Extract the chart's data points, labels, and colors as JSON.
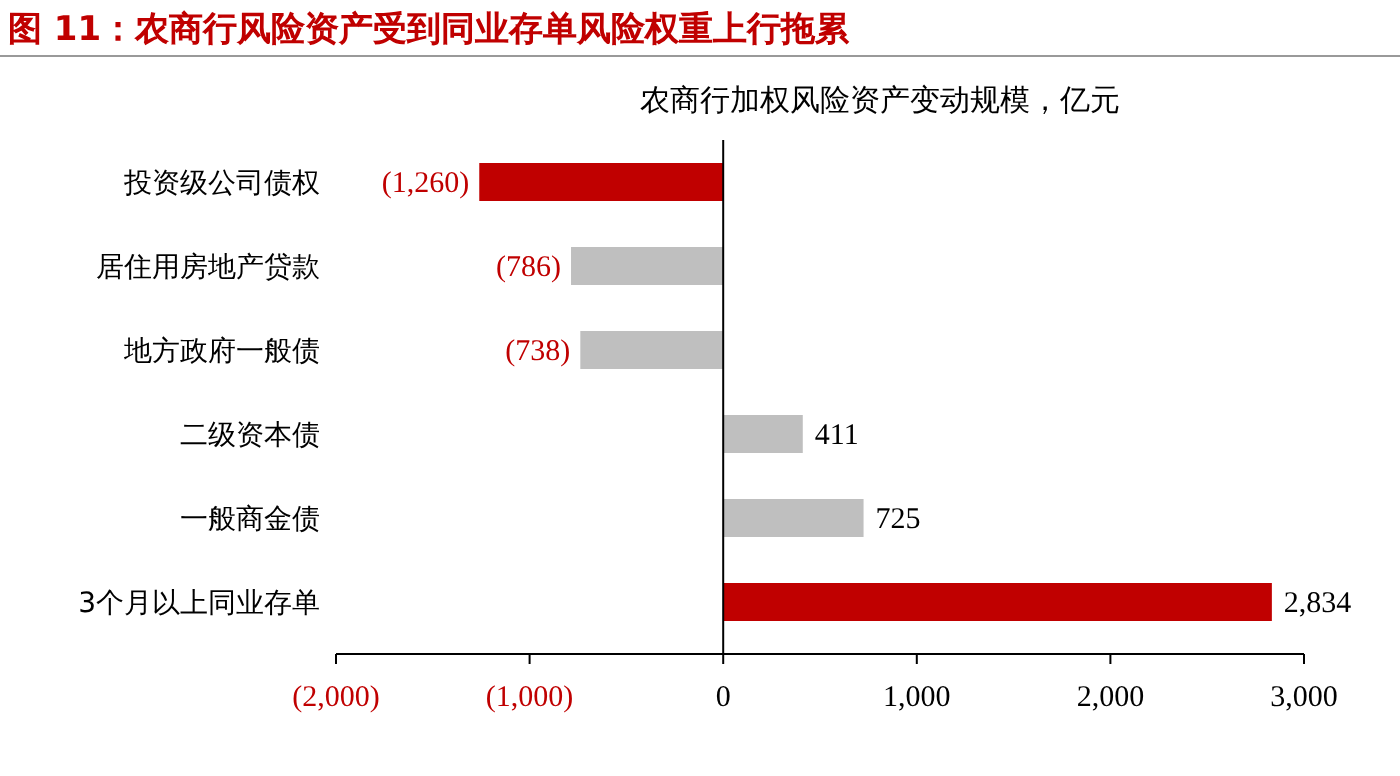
{
  "chart_data": {
    "type": "bar",
    "orientation": "horizontal",
    "title": "图 11：农商行风险资产受到同业存单风险权重上行拖累",
    "subtitle": "农商行加权风险资产变动规模，亿元",
    "categories": [
      "投资级公司债权",
      "居住用房地产贷款",
      "地方政府一般债",
      "二级资本债",
      "一般商金债",
      "3个月以上同业存单"
    ],
    "values": [
      -1260,
      -786,
      -738,
      411,
      725,
      2834
    ],
    "colors": [
      "#c00000",
      "#bfbfbf",
      "#bfbfbf",
      "#bfbfbf",
      "#bfbfbf",
      "#c00000"
    ],
    "value_labels": [
      "(1,260)",
      "(786)",
      "(738)",
      "411",
      "725",
      "2,834"
    ],
    "xlim": [
      -2000,
      3000
    ],
    "xticks": [
      {
        "value": -2000,
        "label": "(2,000)"
      },
      {
        "value": -1000,
        "label": "(1,000)"
      },
      0,
      {
        "value": 1000,
        "label": "1,000"
      },
      {
        "value": 2000,
        "label": "2,000"
      },
      {
        "value": 3000,
        "label": "3,000"
      }
    ]
  }
}
